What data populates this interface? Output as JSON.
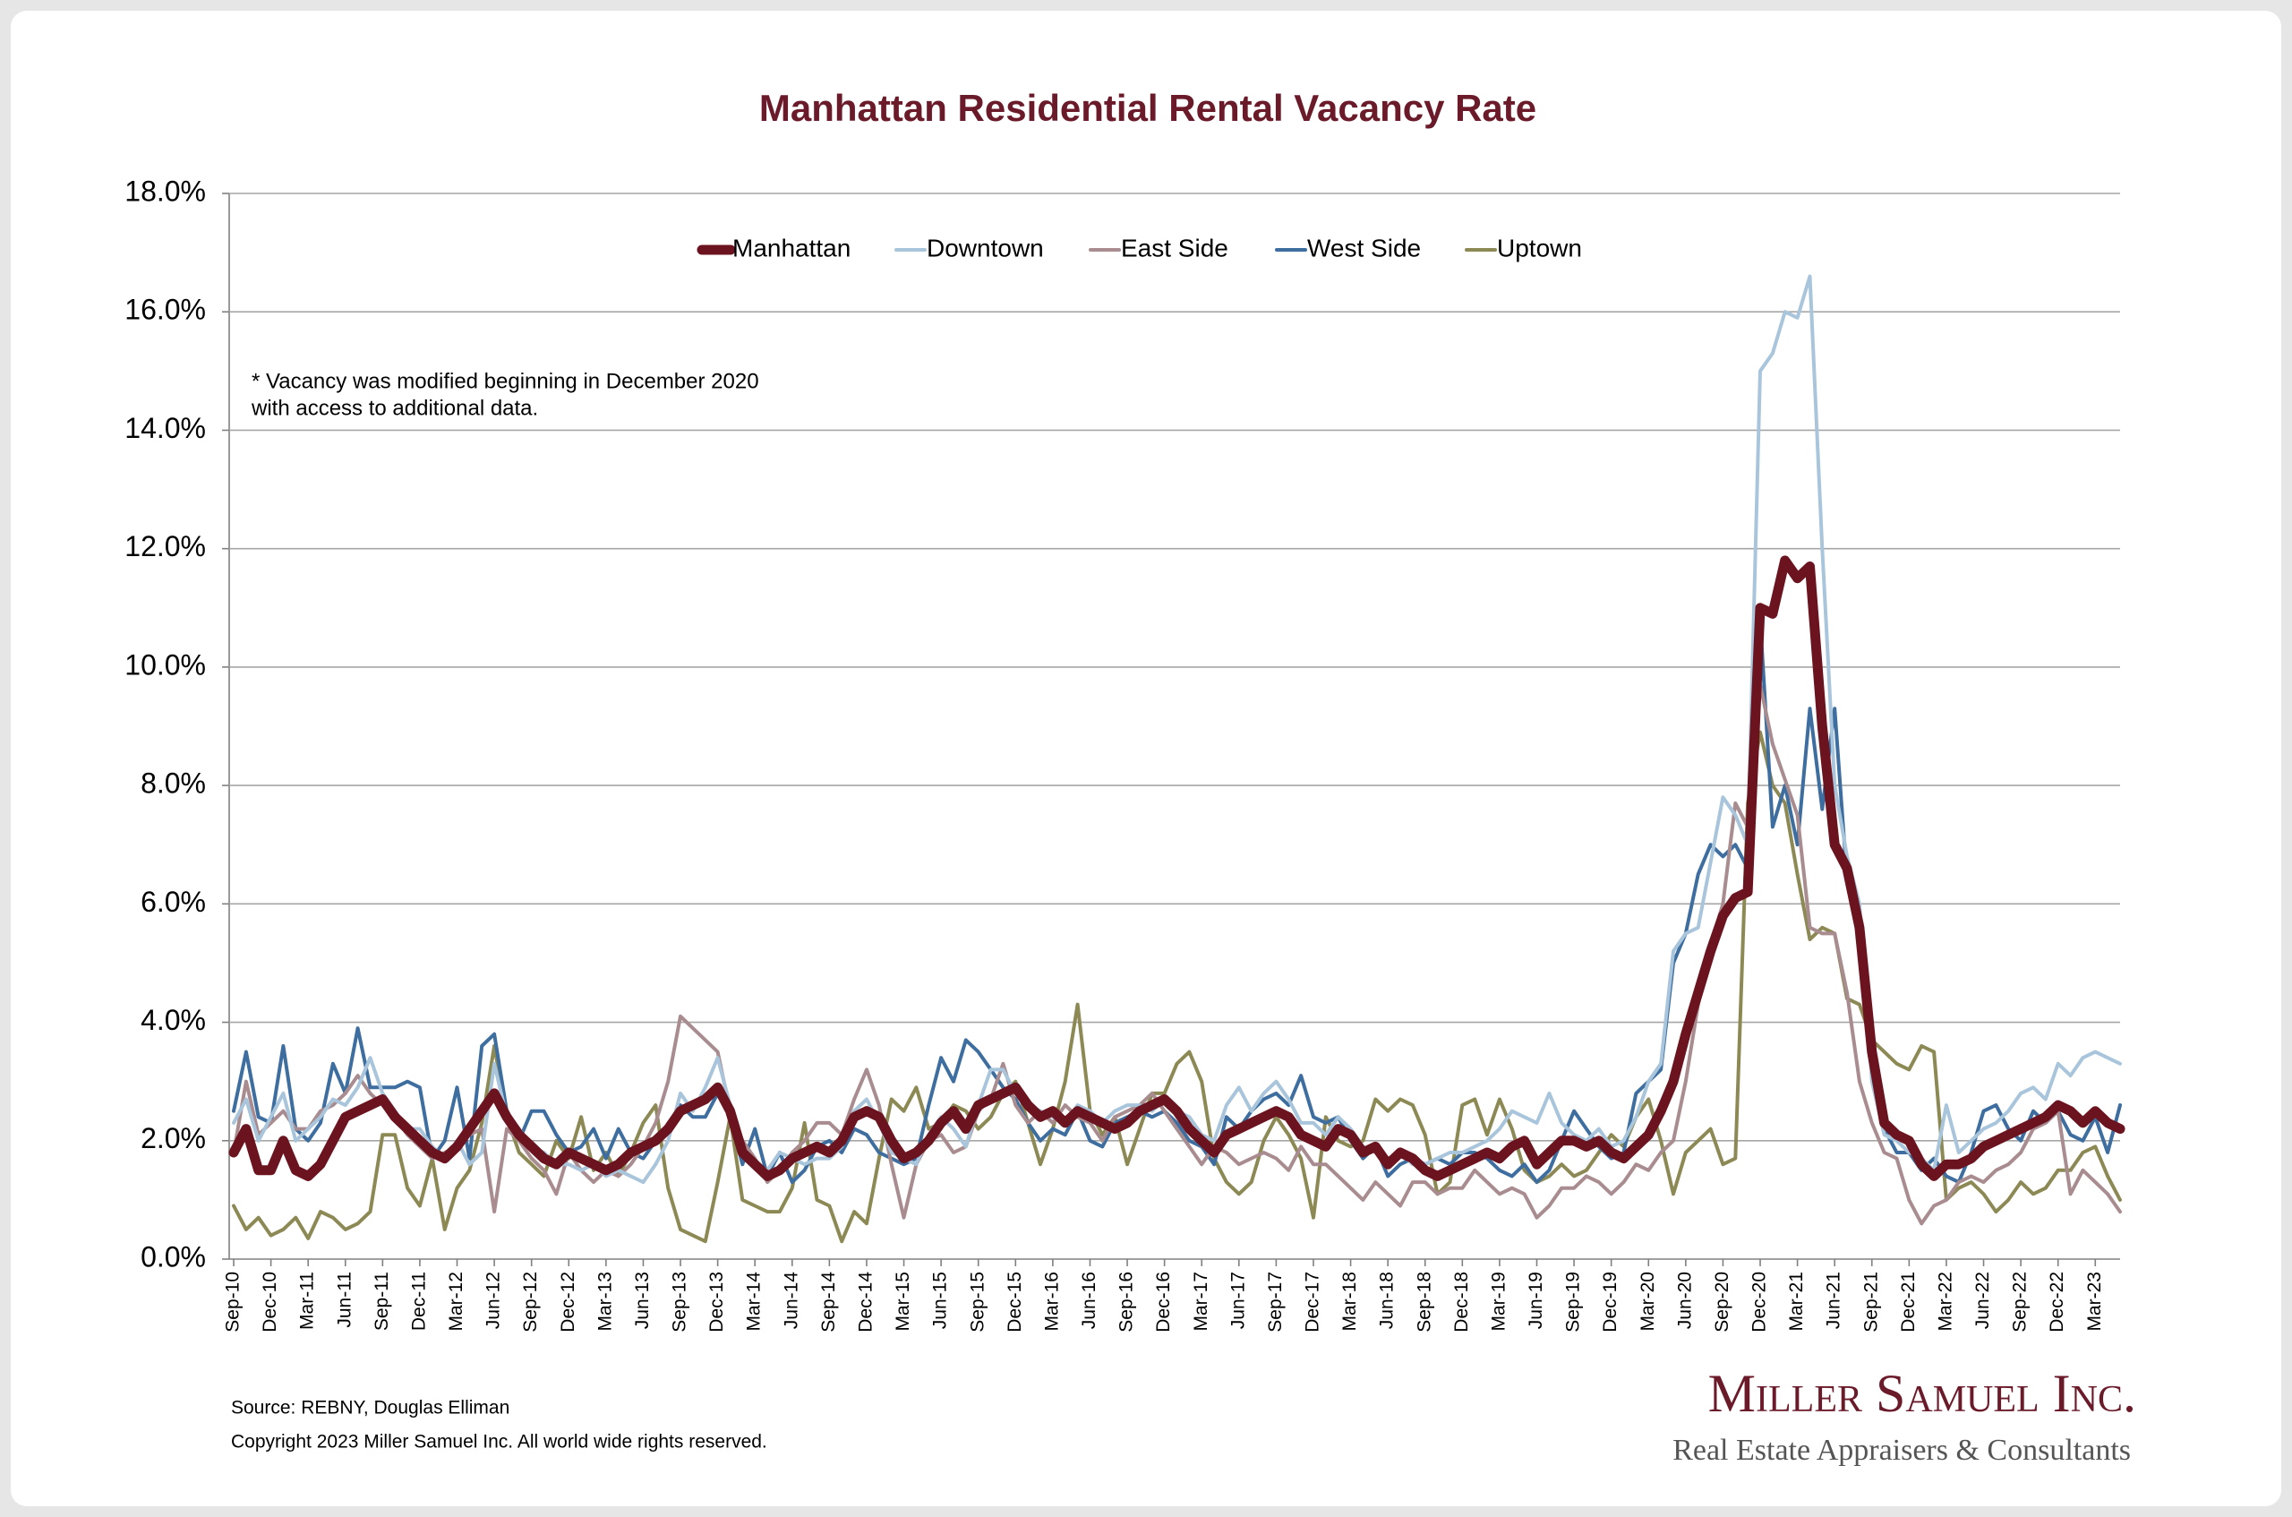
{
  "chart_data": {
    "type": "line",
    "title": "Manhattan Residential Rental Vacancy Rate",
    "note": [
      "* Vacancy was modified beginning in December 2020",
      "with access to additional data."
    ],
    "source": "Source: REBNY, Douglas Elliman",
    "copyright": "Copyright 2023 Miller Samuel Inc.  All world wide rights reserved.",
    "grid": true,
    "legend": "top",
    "ylim": [
      0,
      18
    ],
    "yticks": [
      {
        "value": 0,
        "label": "0.0%"
      },
      {
        "value": 2,
        "label": "2.0%"
      },
      {
        "value": 4,
        "label": "4.0%"
      },
      {
        "value": 6,
        "label": "6.0%"
      },
      {
        "value": 8,
        "label": "8.0%"
      },
      {
        "value": 10,
        "label": "10.0%"
      },
      {
        "value": 12,
        "label": "12.0%"
      },
      {
        "value": 14,
        "label": "14.0%"
      },
      {
        "value": 16,
        "label": "16.0%"
      },
      {
        "value": 18,
        "label": "18.0%"
      }
    ],
    "categories": [
      "Sep-10",
      null,
      null,
      "Dec-10",
      null,
      null,
      "Mar-11",
      null,
      null,
      "Jun-11",
      null,
      null,
      "Sep-11",
      null,
      null,
      "Dec-11",
      null,
      null,
      "Mar-12",
      null,
      null,
      "Jun-12",
      null,
      null,
      "Sep-12",
      null,
      null,
      "Dec-12",
      null,
      null,
      "Mar-13",
      null,
      null,
      "Jun-13",
      null,
      null,
      "Sep-13",
      null,
      null,
      "Dec-13",
      null,
      null,
      "Mar-14",
      null,
      null,
      "Jun-14",
      null,
      null,
      "Sep-14",
      null,
      null,
      "Dec-14",
      null,
      null,
      "Mar-15",
      null,
      null,
      "Jun-15",
      null,
      null,
      "Sep-15",
      null,
      null,
      "Dec-15",
      null,
      null,
      "Mar-16",
      null,
      null,
      "Jun-16",
      null,
      null,
      "Sep-16",
      null,
      null,
      "Dec-16",
      null,
      null,
      "Mar-17",
      null,
      null,
      "Jun-17",
      null,
      null,
      "Sep-17",
      null,
      null,
      "Dec-17",
      null,
      null,
      "Mar-18",
      null,
      null,
      "Jun-18",
      null,
      null,
      "Sep-18",
      null,
      null,
      "Dec-18",
      null,
      null,
      "Mar-19",
      null,
      null,
      "Jun-19",
      null,
      null,
      "Sep-19",
      null,
      null,
      "Dec-19",
      null,
      null,
      "Mar-20",
      null,
      null,
      "Jun-20",
      null,
      null,
      "Sep-20",
      null,
      null,
      "Dec-20",
      null,
      null,
      "Mar-21",
      null,
      null,
      "Jun-21",
      null,
      null,
      "Sep-21",
      null,
      null,
      "Dec-21",
      null,
      null,
      "Mar-22",
      null,
      null,
      "Jun-22",
      null,
      null,
      "Sep-22",
      null,
      null,
      "Dec-22",
      null,
      null,
      "Mar-23",
      null,
      null
    ],
    "series": [
      {
        "name": "Manhattan",
        "color": "#6b1420",
        "width": 11,
        "values": [
          1.8,
          2.2,
          1.5,
          1.5,
          2.0,
          1.5,
          1.4,
          1.6,
          2.0,
          2.4,
          2.5,
          2.6,
          2.7,
          2.4,
          2.2,
          2.0,
          1.8,
          1.7,
          1.9,
          2.2,
          2.5,
          2.8,
          2.4,
          2.1,
          1.9,
          1.7,
          1.6,
          1.8,
          1.7,
          1.6,
          1.5,
          1.6,
          1.8,
          1.9,
          2.0,
          2.2,
          2.5,
          2.6,
          2.7,
          2.9,
          2.5,
          1.8,
          1.6,
          1.4,
          1.5,
          1.7,
          1.8,
          1.9,
          1.8,
          2.0,
          2.4,
          2.5,
          2.4,
          2.0,
          1.7,
          1.8,
          2.0,
          2.3,
          2.5,
          2.2,
          2.6,
          2.7,
          2.8,
          2.9,
          2.6,
          2.4,
          2.5,
          2.3,
          2.5,
          2.4,
          2.3,
          2.2,
          2.3,
          2.5,
          2.6,
          2.7,
          2.5,
          2.2,
          2.0,
          1.8,
          2.1,
          2.2,
          2.3,
          2.4,
          2.5,
          2.4,
          2.1,
          2.0,
          1.9,
          2.2,
          2.1,
          1.8,
          1.9,
          1.6,
          1.8,
          1.7,
          1.5,
          1.4,
          1.5,
          1.6,
          1.7,
          1.8,
          1.7,
          1.9,
          2.0,
          1.6,
          1.8,
          2.0,
          2.0,
          1.9,
          2.0,
          1.8,
          1.7,
          1.9,
          2.1,
          2.5,
          3.0,
          3.8,
          4.5,
          5.2,
          5.8,
          6.1,
          6.2,
          11.0,
          10.9,
          11.8,
          11.5,
          11.7,
          9.0,
          7.0,
          6.6,
          5.6,
          3.5,
          2.3,
          2.1,
          2.0,
          1.6,
          1.4,
          1.6,
          1.6,
          1.7,
          1.9,
          2.0,
          2.1,
          2.2,
          2.3,
          2.4,
          2.6,
          2.5,
          2.3,
          2.5,
          2.3,
          2.2
        ]
      },
      {
        "name": "Downtown",
        "color": "#a9c5dc",
        "width": 4,
        "values": [
          2.3,
          2.7,
          2.0,
          2.4,
          2.8,
          2.0,
          2.2,
          2.4,
          2.7,
          2.6,
          2.9,
          3.4,
          2.8,
          2.5,
          2.2,
          2.2,
          1.9,
          1.7,
          2.0,
          1.6,
          1.8,
          3.3,
          2.4,
          2.2,
          1.9,
          1.8,
          1.6,
          1.6,
          1.5,
          1.6,
          1.4,
          1.5,
          1.4,
          1.3,
          1.6,
          2.0,
          2.8,
          2.5,
          2.9,
          3.4,
          2.6,
          1.8,
          1.6,
          1.5,
          1.8,
          1.7,
          1.6,
          1.7,
          1.7,
          1.9,
          2.5,
          2.7,
          2.3,
          1.8,
          1.7,
          1.6,
          2.1,
          2.4,
          2.2,
          1.9,
          2.6,
          3.2,
          3.2,
          2.8,
          2.6,
          2.5,
          2.4,
          2.3,
          2.6,
          2.5,
          2.3,
          2.5,
          2.6,
          2.6,
          2.5,
          2.7,
          2.5,
          2.4,
          2.1,
          2.0,
          2.6,
          2.9,
          2.5,
          2.8,
          3.0,
          2.7,
          2.3,
          2.3,
          2.1,
          2.4,
          2.2,
          1.9,
          1.8,
          1.7,
          1.8,
          1.6,
          1.6,
          1.7,
          1.8,
          1.8,
          1.9,
          2.0,
          2.2,
          2.5,
          2.4,
          2.3,
          2.8,
          2.3,
          2.1,
          2.0,
          2.2,
          1.9,
          2.0,
          2.4,
          3.0,
          3.3,
          5.2,
          5.5,
          5.6,
          6.7,
          7.8,
          7.5,
          7.0,
          15.0,
          15.3,
          16.0,
          15.9,
          16.6,
          12.0,
          8.0,
          6.8,
          6.0,
          3.0,
          2.1,
          2.0,
          1.8,
          1.7,
          1.5,
          2.6,
          1.8,
          2.0,
          2.2,
          2.3,
          2.5,
          2.8,
          2.9,
          2.7,
          3.3,
          3.1,
          3.4,
          3.5,
          3.4,
          3.3
        ]
      },
      {
        "name": "East Side",
        "color": "#a88c90",
        "width": 4,
        "values": [
          1.8,
          3.0,
          2.1,
          2.3,
          2.5,
          2.2,
          2.2,
          2.5,
          2.6,
          2.8,
          3.1,
          2.8,
          2.6,
          2.4,
          2.1,
          1.9,
          1.7,
          1.8,
          1.9,
          2.1,
          2.2,
          0.8,
          2.2,
          2.0,
          1.7,
          1.5,
          1.1,
          1.8,
          1.5,
          1.3,
          1.5,
          1.4,
          1.6,
          1.9,
          2.3,
          3.0,
          4.1,
          3.9,
          3.7,
          3.5,
          2.5,
          2.0,
          1.7,
          1.3,
          1.5,
          1.8,
          2.0,
          2.3,
          2.3,
          2.1,
          2.7,
          3.2,
          2.6,
          1.6,
          0.7,
          1.6,
          2.0,
          2.1,
          1.8,
          1.9,
          2.5,
          2.7,
          3.3,
          2.6,
          2.3,
          2.5,
          2.3,
          2.6,
          2.4,
          2.3,
          2.0,
          2.4,
          2.5,
          2.6,
          2.8,
          2.5,
          2.2,
          1.9,
          1.6,
          1.9,
          1.8,
          1.6,
          1.7,
          1.8,
          1.7,
          1.5,
          1.9,
          1.6,
          1.6,
          1.4,
          1.2,
          1.0,
          1.3,
          1.1,
          0.9,
          1.3,
          1.3,
          1.1,
          1.2,
          1.2,
          1.5,
          1.3,
          1.1,
          1.2,
          1.1,
          0.7,
          0.9,
          1.2,
          1.2,
          1.4,
          1.3,
          1.1,
          1.3,
          1.6,
          1.5,
          1.8,
          2.0,
          3.0,
          4.3,
          5.3,
          6.0,
          7.7,
          7.3,
          9.7,
          8.7,
          8.1,
          7.5,
          5.6,
          5.5,
          5.5,
          4.5,
          3.0,
          2.3,
          1.8,
          1.7,
          1.0,
          0.6,
          0.9,
          1.0,
          1.3,
          1.4,
          1.3,
          1.5,
          1.6,
          1.8,
          2.2,
          2.3,
          2.5,
          1.1,
          1.5,
          1.3,
          1.1,
          0.8
        ]
      },
      {
        "name": "West Side",
        "color": "#3d6e9f",
        "width": 4,
        "values": [
          2.5,
          3.5,
          2.4,
          2.3,
          3.6,
          2.2,
          2.0,
          2.3,
          3.3,
          2.8,
          3.9,
          2.9,
          2.9,
          2.9,
          3.0,
          2.9,
          1.7,
          2.0,
          2.9,
          1.7,
          3.6,
          3.8,
          2.5,
          2.0,
          2.5,
          2.5,
          2.1,
          1.8,
          1.9,
          2.2,
          1.7,
          2.2,
          1.8,
          1.7,
          2.0,
          2.2,
          2.6,
          2.4,
          2.4,
          2.8,
          2.4,
          1.6,
          2.2,
          1.4,
          1.8,
          1.3,
          1.5,
          1.9,
          2.0,
          1.8,
          2.2,
          2.1,
          1.8,
          1.7,
          1.6,
          1.7,
          2.6,
          3.4,
          3.0,
          3.7,
          3.5,
          3.2,
          2.9,
          2.7,
          2.3,
          2.0,
          2.2,
          2.1,
          2.5,
          2.0,
          1.9,
          2.3,
          2.4,
          2.5,
          2.4,
          2.5,
          2.3,
          2.0,
          1.9,
          1.6,
          2.4,
          2.2,
          2.5,
          2.7,
          2.8,
          2.6,
          3.1,
          2.4,
          2.3,
          2.4,
          2.0,
          1.7,
          1.9,
          1.4,
          1.6,
          1.7,
          1.6,
          1.7,
          1.6,
          1.8,
          1.8,
          1.7,
          1.5,
          1.4,
          1.6,
          1.3,
          1.5,
          2.0,
          2.5,
          2.2,
          1.9,
          1.7,
          1.8,
          2.8,
          3.0,
          3.2,
          5.0,
          5.5,
          6.5,
          7.0,
          6.8,
          7.0,
          6.6,
          10.8,
          7.3,
          8.0,
          7.0,
          9.3,
          7.6,
          9.3,
          6.4,
          5.5,
          3.3,
          2.2,
          1.8,
          1.8,
          1.5,
          1.7,
          1.4,
          1.3,
          1.8,
          2.5,
          2.6,
          2.2,
          2.0,
          2.5,
          2.3,
          2.5,
          2.1,
          2.0,
          2.4,
          1.8,
          2.6
        ]
      },
      {
        "name": "Uptown",
        "color": "#8c8955",
        "width": 4,
        "values": [
          0.9,
          0.5,
          0.7,
          0.4,
          0.5,
          0.7,
          0.35,
          0.8,
          0.7,
          0.5,
          0.6,
          0.8,
          2.1,
          2.1,
          1.2,
          0.9,
          1.7,
          0.5,
          1.2,
          1.5,
          2.3,
          3.6,
          2.4,
          1.8,
          1.6,
          1.4,
          2.0,
          1.7,
          2.4,
          1.5,
          1.8,
          1.4,
          1.8,
          2.3,
          2.6,
          1.2,
          0.5,
          0.4,
          0.3,
          1.3,
          2.4,
          1.0,
          0.9,
          0.8,
          0.8,
          1.2,
          2.3,
          1.0,
          0.9,
          0.3,
          0.8,
          0.6,
          1.7,
          2.7,
          2.5,
          2.9,
          2.2,
          2.3,
          2.6,
          2.5,
          2.2,
          2.4,
          2.8,
          3.0,
          2.3,
          1.6,
          2.2,
          3.0,
          4.3,
          2.5,
          2.1,
          2.4,
          1.6,
          2.2,
          2.8,
          2.8,
          3.3,
          3.5,
          3.0,
          1.7,
          1.3,
          1.1,
          1.3,
          2.0,
          2.4,
          2.1,
          1.7,
          0.7,
          2.4,
          2.0,
          1.9,
          2.0,
          2.7,
          2.5,
          2.7,
          2.6,
          2.1,
          1.1,
          1.3,
          2.6,
          2.7,
          2.1,
          2.7,
          2.2,
          1.5,
          1.3,
          1.4,
          1.6,
          1.4,
          1.5,
          1.8,
          2.1,
          1.9,
          2.4,
          2.7,
          2.0,
          1.1,
          1.8,
          2.0,
          2.2,
          1.6,
          1.7,
          7.7,
          8.9,
          8.0,
          7.7,
          6.5,
          5.4,
          5.6,
          5.5,
          4.4,
          4.3,
          3.7,
          3.5,
          3.3,
          3.2,
          3.6,
          3.5,
          1.0,
          1.2,
          1.3,
          1.1,
          0.8,
          1.0,
          1.3,
          1.1,
          1.2,
          1.5,
          1.5,
          1.8,
          1.9,
          1.4,
          1.0
        ]
      }
    ]
  },
  "logo": {
    "name": "Miller Samuel Inc.",
    "tagline": "Real Estate Appraisers & Consultants"
  }
}
